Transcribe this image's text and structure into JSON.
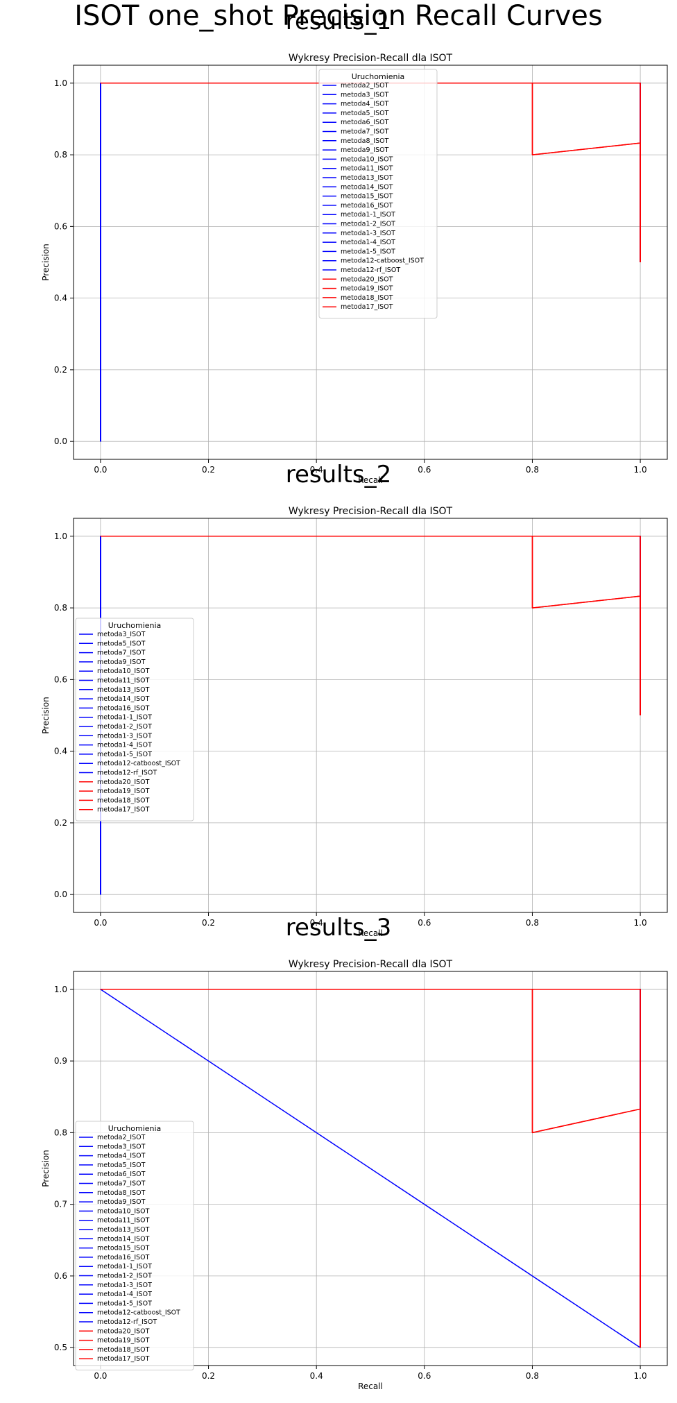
{
  "figure": {
    "title": "ISOT one_shot Precision Recall Curves"
  },
  "palette": {
    "blue": "#0000ff",
    "red": "#ff0000",
    "grid": "#b0b0b0",
    "legend_border": "#cccccc"
  },
  "chart_data": [
    {
      "panel_title": "results_1",
      "type": "line",
      "title": "Wykresy Precision-Recall dla ISOT",
      "xlabel": "Recall",
      "ylabel": "Precision",
      "xlim": [
        -0.05,
        1.05
      ],
      "ylim": [
        -0.05,
        1.05
      ],
      "xticks": [
        0.0,
        0.2,
        0.4,
        0.6,
        0.8,
        1.0
      ],
      "yticks": [
        0.0,
        0.2,
        0.4,
        0.6,
        0.8,
        1.0
      ],
      "grid": true,
      "legend_title": "Uruchomienia",
      "legend_location": "top-center",
      "series": [
        {
          "name": "metoda2_ISOT",
          "color": "blue",
          "x": [
            1,
            1,
            0,
            0
          ],
          "y": [
            0.5,
            1,
            1,
            0
          ]
        },
        {
          "name": "metoda3_ISOT",
          "color": "blue",
          "x": [
            1,
            1,
            0,
            0
          ],
          "y": [
            0.5,
            1,
            1,
            0
          ]
        },
        {
          "name": "metoda4_ISOT",
          "color": "blue",
          "x": [
            1,
            1,
            0,
            0
          ],
          "y": [
            0.5,
            1,
            1,
            0
          ]
        },
        {
          "name": "metoda5_ISOT",
          "color": "blue",
          "x": [
            1,
            1,
            0,
            0
          ],
          "y": [
            0.5,
            1,
            1,
            0
          ]
        },
        {
          "name": "metoda6_ISOT",
          "color": "blue",
          "x": [
            1,
            1,
            0,
            0
          ],
          "y": [
            0.5,
            1,
            1,
            0
          ]
        },
        {
          "name": "metoda7_ISOT",
          "color": "blue",
          "x": [
            1,
            1,
            0,
            0
          ],
          "y": [
            0.5,
            1,
            1,
            0
          ]
        },
        {
          "name": "metoda8_ISOT",
          "color": "blue",
          "x": [
            1,
            1,
            0,
            0
          ],
          "y": [
            0.5,
            1,
            1,
            0
          ]
        },
        {
          "name": "metoda9_ISOT",
          "color": "blue",
          "x": [
            1,
            1,
            0,
            0
          ],
          "y": [
            0.5,
            1,
            1,
            0
          ]
        },
        {
          "name": "metoda10_ISOT",
          "color": "blue",
          "x": [
            1,
            1,
            0,
            0
          ],
          "y": [
            0.5,
            1,
            1,
            0
          ]
        },
        {
          "name": "metoda11_ISOT",
          "color": "blue",
          "x": [
            1,
            1,
            0,
            0
          ],
          "y": [
            0.5,
            1,
            1,
            0
          ]
        },
        {
          "name": "metoda13_ISOT",
          "color": "blue",
          "x": [
            1,
            1,
            0,
            0
          ],
          "y": [
            0.5,
            1,
            1,
            0
          ]
        },
        {
          "name": "metoda14_ISOT",
          "color": "blue",
          "x": [
            1,
            1,
            0,
            0
          ],
          "y": [
            0.5,
            1,
            1,
            0
          ]
        },
        {
          "name": "metoda15_ISOT",
          "color": "blue",
          "x": [
            1,
            1,
            0,
            0
          ],
          "y": [
            0.5,
            1,
            1,
            0
          ]
        },
        {
          "name": "metoda16_ISOT",
          "color": "blue",
          "x": [
            1,
            1,
            0,
            0
          ],
          "y": [
            0.5,
            1,
            1,
            0
          ]
        },
        {
          "name": "metoda1-1_ISOT",
          "color": "blue",
          "x": [
            1,
            1,
            0,
            0
          ],
          "y": [
            0.5,
            1,
            1,
            0
          ]
        },
        {
          "name": "metoda1-2_ISOT",
          "color": "blue",
          "x": [
            1,
            1,
            0,
            0
          ],
          "y": [
            0.5,
            1,
            1,
            0
          ]
        },
        {
          "name": "metoda1-3_ISOT",
          "color": "blue",
          "x": [
            1,
            1,
            0,
            0
          ],
          "y": [
            0.5,
            1,
            1,
            0
          ]
        },
        {
          "name": "metoda1-4_ISOT",
          "color": "blue",
          "x": [
            1,
            1,
            0,
            0
          ],
          "y": [
            0.5,
            1,
            1,
            0
          ]
        },
        {
          "name": "metoda1-5_ISOT",
          "color": "blue",
          "x": [
            1,
            1,
            0,
            0
          ],
          "y": [
            0.5,
            1,
            1,
            0
          ]
        },
        {
          "name": "metoda12-catboost_ISOT",
          "color": "blue",
          "x": [
            1,
            1,
            0,
            0
          ],
          "y": [
            0.5,
            1,
            1,
            0
          ]
        },
        {
          "name": "metoda12-rf_ISOT",
          "color": "blue",
          "x": [
            1,
            1,
            0,
            0
          ],
          "y": [
            0.5,
            1,
            1,
            0
          ]
        },
        {
          "name": "metoda20_ISOT",
          "color": "red",
          "x": [
            1,
            1,
            0.8,
            0.8,
            0
          ],
          "y": [
            0.5,
            0.833,
            0.8,
            1,
            1
          ]
        },
        {
          "name": "metoda19_ISOT",
          "color": "red",
          "x": [
            1,
            1,
            0.8,
            0.8,
            0
          ],
          "y": [
            0.5,
            0.833,
            0.8,
            1,
            1
          ]
        },
        {
          "name": "metoda18_ISOT",
          "color": "red",
          "x": [
            1,
            1,
            0
          ],
          "y": [
            0.5,
            1,
            1
          ]
        },
        {
          "name": "metoda17_ISOT",
          "color": "red",
          "x": [
            1,
            1,
            0
          ],
          "y": [
            0.5,
            1,
            1
          ]
        }
      ]
    },
    {
      "panel_title": "results_2",
      "type": "line",
      "title": "Wykresy Precision-Recall dla ISOT",
      "xlabel": "Recall",
      "ylabel": "Precision",
      "xlim": [
        -0.05,
        1.05
      ],
      "ylim": [
        -0.05,
        1.05
      ],
      "xticks": [
        0.0,
        0.2,
        0.4,
        0.6,
        0.8,
        1.0
      ],
      "yticks": [
        0.0,
        0.2,
        0.4,
        0.6,
        0.8,
        1.0
      ],
      "grid": true,
      "legend_title": "Uruchomienia",
      "legend_location": "center-left",
      "series": [
        {
          "name": "metoda3_ISOT",
          "color": "blue",
          "x": [
            1,
            1,
            0,
            0
          ],
          "y": [
            0.5,
            1,
            1,
            0
          ]
        },
        {
          "name": "metoda5_ISOT",
          "color": "blue",
          "x": [
            1,
            1,
            0,
            0
          ],
          "y": [
            0.5,
            1,
            1,
            0
          ]
        },
        {
          "name": "metoda7_ISOT",
          "color": "blue",
          "x": [
            1,
            1,
            0,
            0
          ],
          "y": [
            0.5,
            1,
            1,
            0
          ]
        },
        {
          "name": "metoda9_ISOT",
          "color": "blue",
          "x": [
            1,
            1,
            0,
            0
          ],
          "y": [
            0.5,
            1,
            1,
            0
          ]
        },
        {
          "name": "metoda10_ISOT",
          "color": "blue",
          "x": [
            1,
            1,
            0,
            0
          ],
          "y": [
            0.5,
            1,
            1,
            0
          ]
        },
        {
          "name": "metoda11_ISOT",
          "color": "blue",
          "x": [
            1,
            1,
            0,
            0
          ],
          "y": [
            0.5,
            1,
            1,
            0
          ]
        },
        {
          "name": "metoda13_ISOT",
          "color": "blue",
          "x": [
            1,
            1,
            0,
            0
          ],
          "y": [
            0.5,
            1,
            1,
            0
          ]
        },
        {
          "name": "metoda14_ISOT",
          "color": "blue",
          "x": [
            1,
            1,
            0,
            0
          ],
          "y": [
            0.5,
            1,
            1,
            0
          ]
        },
        {
          "name": "metoda16_ISOT",
          "color": "blue",
          "x": [
            1,
            1,
            0,
            0
          ],
          "y": [
            0.5,
            1,
            1,
            0
          ]
        },
        {
          "name": "metoda1-1_ISOT",
          "color": "blue",
          "x": [
            1,
            1,
            0,
            0
          ],
          "y": [
            0.5,
            1,
            1,
            0
          ]
        },
        {
          "name": "metoda1-2_ISOT",
          "color": "blue",
          "x": [
            1,
            1,
            0,
            0
          ],
          "y": [
            0.5,
            1,
            1,
            0
          ]
        },
        {
          "name": "metoda1-3_ISOT",
          "color": "blue",
          "x": [
            1,
            1,
            0,
            0
          ],
          "y": [
            0.5,
            1,
            1,
            0
          ]
        },
        {
          "name": "metoda1-4_ISOT",
          "color": "blue",
          "x": [
            1,
            1,
            0,
            0
          ],
          "y": [
            0.5,
            1,
            1,
            0
          ]
        },
        {
          "name": "metoda1-5_ISOT",
          "color": "blue",
          "x": [
            1,
            1,
            0,
            0
          ],
          "y": [
            0.5,
            1,
            1,
            0
          ]
        },
        {
          "name": "metoda12-catboost_ISOT",
          "color": "blue",
          "x": [
            1,
            1,
            0,
            0
          ],
          "y": [
            0.5,
            1,
            1,
            0
          ]
        },
        {
          "name": "metoda12-rf_ISOT",
          "color": "blue",
          "x": [
            1,
            1,
            0,
            0
          ],
          "y": [
            0.5,
            1,
            1,
            0
          ]
        },
        {
          "name": "metoda20_ISOT",
          "color": "red",
          "x": [
            1,
            1,
            0.8,
            0.8,
            0
          ],
          "y": [
            0.5,
            0.833,
            0.8,
            1,
            1
          ]
        },
        {
          "name": "metoda19_ISOT",
          "color": "red",
          "x": [
            1,
            1,
            0.8,
            0.8,
            0
          ],
          "y": [
            0.5,
            0.833,
            0.8,
            1,
            1
          ]
        },
        {
          "name": "metoda18_ISOT",
          "color": "red",
          "x": [
            1,
            1,
            0
          ],
          "y": [
            0.5,
            1,
            1
          ]
        },
        {
          "name": "metoda17_ISOT",
          "color": "red",
          "x": [
            1,
            1,
            0
          ],
          "y": [
            0.5,
            1,
            1
          ]
        }
      ]
    },
    {
      "panel_title": "results_3",
      "type": "line",
      "title": "Wykresy Precision-Recall dla ISOT",
      "xlabel": "Recall",
      "ylabel": "Precision",
      "xlim": [
        -0.05,
        1.05
      ],
      "ylim": [
        0.475,
        1.025
      ],
      "xticks": [
        0.0,
        0.2,
        0.4,
        0.6,
        0.8,
        1.0
      ],
      "yticks": [
        0.5,
        0.6,
        0.7,
        0.8,
        0.9,
        1.0
      ],
      "grid": true,
      "legend_title": "Uruchomienia",
      "legend_location": "lower-left",
      "series": [
        {
          "name": "metoda2_ISOT",
          "color": "blue",
          "x": [
            1,
            1,
            0,
            1
          ],
          "y": [
            0.5,
            1,
            1,
            0.5
          ]
        },
        {
          "name": "metoda3_ISOT",
          "color": "blue",
          "x": [
            1,
            1,
            0
          ],
          "y": [
            0.5,
            1,
            1
          ]
        },
        {
          "name": "metoda4_ISOT",
          "color": "blue",
          "x": [
            1,
            1,
            0
          ],
          "y": [
            0.5,
            1,
            1
          ]
        },
        {
          "name": "metoda5_ISOT",
          "color": "blue",
          "x": [
            1,
            1,
            0
          ],
          "y": [
            0.5,
            1,
            1
          ]
        },
        {
          "name": "metoda6_ISOT",
          "color": "blue",
          "x": [
            1,
            1,
            0
          ],
          "y": [
            0.5,
            1,
            1
          ]
        },
        {
          "name": "metoda7_ISOT",
          "color": "blue",
          "x": [
            1,
            1,
            0
          ],
          "y": [
            0.5,
            1,
            1
          ]
        },
        {
          "name": "metoda8_ISOT",
          "color": "blue",
          "x": [
            1,
            1,
            0
          ],
          "y": [
            0.5,
            1,
            1
          ]
        },
        {
          "name": "metoda9_ISOT",
          "color": "blue",
          "x": [
            1,
            1,
            0
          ],
          "y": [
            0.5,
            1,
            1
          ]
        },
        {
          "name": "metoda10_ISOT",
          "color": "blue",
          "x": [
            1,
            1,
            0
          ],
          "y": [
            0.5,
            1,
            1
          ]
        },
        {
          "name": "metoda11_ISOT",
          "color": "blue",
          "x": [
            1,
            1,
            0
          ],
          "y": [
            0.5,
            1,
            1
          ]
        },
        {
          "name": "metoda13_ISOT",
          "color": "blue",
          "x": [
            1,
            1,
            0
          ],
          "y": [
            0.5,
            1,
            1
          ]
        },
        {
          "name": "metoda14_ISOT",
          "color": "blue",
          "x": [
            1,
            1,
            0
          ],
          "y": [
            0.5,
            1,
            1
          ]
        },
        {
          "name": "metoda15_ISOT",
          "color": "blue",
          "x": [
            1,
            1,
            0
          ],
          "y": [
            0.5,
            1,
            1
          ]
        },
        {
          "name": "metoda16_ISOT",
          "color": "blue",
          "x": [
            1,
            1,
            0
          ],
          "y": [
            0.5,
            1,
            1
          ]
        },
        {
          "name": "metoda1-1_ISOT",
          "color": "blue",
          "x": [
            1,
            1,
            0
          ],
          "y": [
            0.5,
            1,
            1
          ]
        },
        {
          "name": "metoda1-2_ISOT",
          "color": "blue",
          "x": [
            1,
            1,
            0
          ],
          "y": [
            0.5,
            1,
            1
          ]
        },
        {
          "name": "metoda1-3_ISOT",
          "color": "blue",
          "x": [
            1,
            1,
            0
          ],
          "y": [
            0.5,
            1,
            1
          ]
        },
        {
          "name": "metoda1-4_ISOT",
          "color": "blue",
          "x": [
            1,
            1,
            0
          ],
          "y": [
            0.5,
            1,
            1
          ]
        },
        {
          "name": "metoda1-5_ISOT",
          "color": "blue",
          "x": [
            1,
            1,
            0
          ],
          "y": [
            0.5,
            1,
            1
          ]
        },
        {
          "name": "metoda12-catboost_ISOT",
          "color": "blue",
          "x": [
            1,
            1,
            0
          ],
          "y": [
            0.5,
            1,
            1
          ]
        },
        {
          "name": "metoda12-rf_ISOT",
          "color": "blue",
          "x": [
            1,
            1,
            0
          ],
          "y": [
            0.5,
            1,
            1
          ]
        },
        {
          "name": "metoda20_ISOT",
          "color": "red",
          "x": [
            1,
            1,
            0.8,
            0.8,
            0
          ],
          "y": [
            0.5,
            0.833,
            0.8,
            1,
            1
          ]
        },
        {
          "name": "metoda19_ISOT",
          "color": "red",
          "x": [
            1,
            1,
            0.8,
            0.8,
            0
          ],
          "y": [
            0.5,
            0.833,
            0.8,
            1,
            1
          ]
        },
        {
          "name": "metoda18_ISOT",
          "color": "red",
          "x": [
            1,
            1,
            0
          ],
          "y": [
            0.5,
            1,
            1
          ]
        },
        {
          "name": "metoda17_ISOT",
          "color": "red",
          "x": [
            1,
            1,
            0
          ],
          "y": [
            0.5,
            1,
            1
          ]
        }
      ]
    }
  ]
}
